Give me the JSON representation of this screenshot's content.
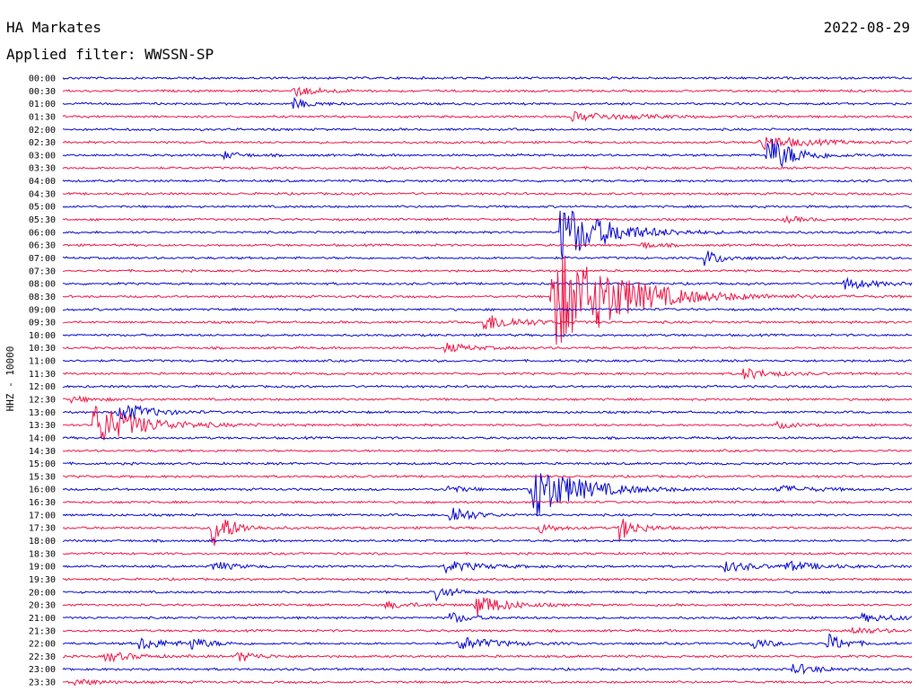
{
  "header": {
    "station": "HA Markates",
    "date": "2022-08-29",
    "filter_label": "Applied filter: WWSSN-SP"
  },
  "chart_data": {
    "type": "line",
    "title": "HA Markates",
    "ylabel": "HHZ - 10000",
    "row_labels": [
      "00:00",
      "00:30",
      "01:00",
      "01:30",
      "02:00",
      "02:30",
      "03:00",
      "03:30",
      "04:00",
      "04:30",
      "05:00",
      "05:30",
      "06:00",
      "06:30",
      "07:00",
      "07:30",
      "08:00",
      "08:30",
      "09:00",
      "09:30",
      "10:00",
      "10:30",
      "11:00",
      "11:30",
      "12:00",
      "12:30",
      "13:00",
      "13:30",
      "14:00",
      "14:30",
      "15:00",
      "15:30",
      "16:00",
      "16:30",
      "17:00",
      "17:30",
      "18:00",
      "18:30",
      "19:00",
      "19:30",
      "20:00",
      "20:30",
      "21:00",
      "21:30",
      "22:00",
      "22:30",
      "23:00",
      "23:30"
    ],
    "x_range_minutes": [
      0,
      30
    ],
    "colors": [
      "#0000cc",
      "#ee1144"
    ],
    "events": [
      {
        "row": 1,
        "t": 0.27,
        "amp": 6,
        "dur": 0.03
      },
      {
        "row": 2,
        "t": 0.27,
        "amp": 6,
        "dur": 0.02
      },
      {
        "row": 3,
        "t": 0.6,
        "amp": 5,
        "dur": 0.06
      },
      {
        "row": 5,
        "t": 0.82,
        "amp": 8,
        "dur": 0.05
      },
      {
        "row": 6,
        "t": 0.83,
        "amp": 22,
        "dur": 0.03
      },
      {
        "row": 6,
        "t": 0.19,
        "amp": 4,
        "dur": 0.02
      },
      {
        "row": 11,
        "t": 0.85,
        "amp": 3,
        "dur": 0.03
      },
      {
        "row": 12,
        "t": 0.585,
        "amp": 35,
        "dur": 0.05
      },
      {
        "row": 13,
        "t": 0.68,
        "amp": 4,
        "dur": 0.02
      },
      {
        "row": 14,
        "t": 0.755,
        "amp": 10,
        "dur": 0.02
      },
      {
        "row": 16,
        "t": 0.92,
        "amp": 7,
        "dur": 0.03
      },
      {
        "row": 17,
        "t": 0.575,
        "amp": 62,
        "dur": 0.07
      },
      {
        "row": 17,
        "t": 0.63,
        "amp": 8,
        "dur": 0.03
      },
      {
        "row": 19,
        "t": 0.495,
        "amp": 10,
        "dur": 0.04
      },
      {
        "row": 21,
        "t": 0.45,
        "amp": 5,
        "dur": 0.03
      },
      {
        "row": 23,
        "t": 0.8,
        "amp": 7,
        "dur": 0.03
      },
      {
        "row": 25,
        "t": 0.01,
        "amp": 3,
        "dur": 0.03
      },
      {
        "row": 26,
        "t": 0.065,
        "amp": 14,
        "dur": 0.03
      },
      {
        "row": 27,
        "t": 0.035,
        "amp": 25,
        "dur": 0.05
      },
      {
        "row": 27,
        "t": 0.84,
        "amp": 4,
        "dur": 0.02
      },
      {
        "row": 32,
        "t": 0.55,
        "amp": 34,
        "dur": 0.05
      },
      {
        "row": 32,
        "t": 0.45,
        "amp": 5,
        "dur": 0.02
      },
      {
        "row": 32,
        "t": 0.84,
        "amp": 4,
        "dur": 0.04
      },
      {
        "row": 34,
        "t": 0.455,
        "amp": 14,
        "dur": 0.02
      },
      {
        "row": 35,
        "t": 0.175,
        "amp": 26,
        "dur": 0.02
      },
      {
        "row": 35,
        "t": 0.655,
        "amp": 14,
        "dur": 0.02
      },
      {
        "row": 35,
        "t": 0.56,
        "amp": 6,
        "dur": 0.02
      },
      {
        "row": 38,
        "t": 0.175,
        "amp": 7,
        "dur": 0.02
      },
      {
        "row": 38,
        "t": 0.45,
        "amp": 6,
        "dur": 0.04
      },
      {
        "row": 38,
        "t": 0.78,
        "amp": 6,
        "dur": 0.03
      },
      {
        "row": 38,
        "t": 0.85,
        "amp": 5,
        "dur": 0.04
      },
      {
        "row": 40,
        "t": 0.44,
        "amp": 8,
        "dur": 0.02
      },
      {
        "row": 41,
        "t": 0.485,
        "amp": 14,
        "dur": 0.03
      },
      {
        "row": 41,
        "t": 0.38,
        "amp": 4,
        "dur": 0.03
      },
      {
        "row": 42,
        "t": 0.455,
        "amp": 7,
        "dur": 0.02
      },
      {
        "row": 42,
        "t": 0.94,
        "amp": 4,
        "dur": 0.05
      },
      {
        "row": 43,
        "t": 0.93,
        "amp": 4,
        "dur": 0.03
      },
      {
        "row": 44,
        "t": 0.09,
        "amp": 7,
        "dur": 0.03
      },
      {
        "row": 44,
        "t": 0.15,
        "amp": 7,
        "dur": 0.02
      },
      {
        "row": 44,
        "t": 0.465,
        "amp": 8,
        "dur": 0.04
      },
      {
        "row": 44,
        "t": 0.81,
        "amp": 7,
        "dur": 0.02
      },
      {
        "row": 44,
        "t": 0.9,
        "amp": 11,
        "dur": 0.02
      },
      {
        "row": 45,
        "t": 0.05,
        "amp": 6,
        "dur": 0.03
      },
      {
        "row": 45,
        "t": 0.205,
        "amp": 7,
        "dur": 0.02
      },
      {
        "row": 46,
        "t": 0.86,
        "amp": 6,
        "dur": 0.03
      },
      {
        "row": 47,
        "t": 0.01,
        "amp": 4,
        "dur": 0.03
      }
    ]
  }
}
